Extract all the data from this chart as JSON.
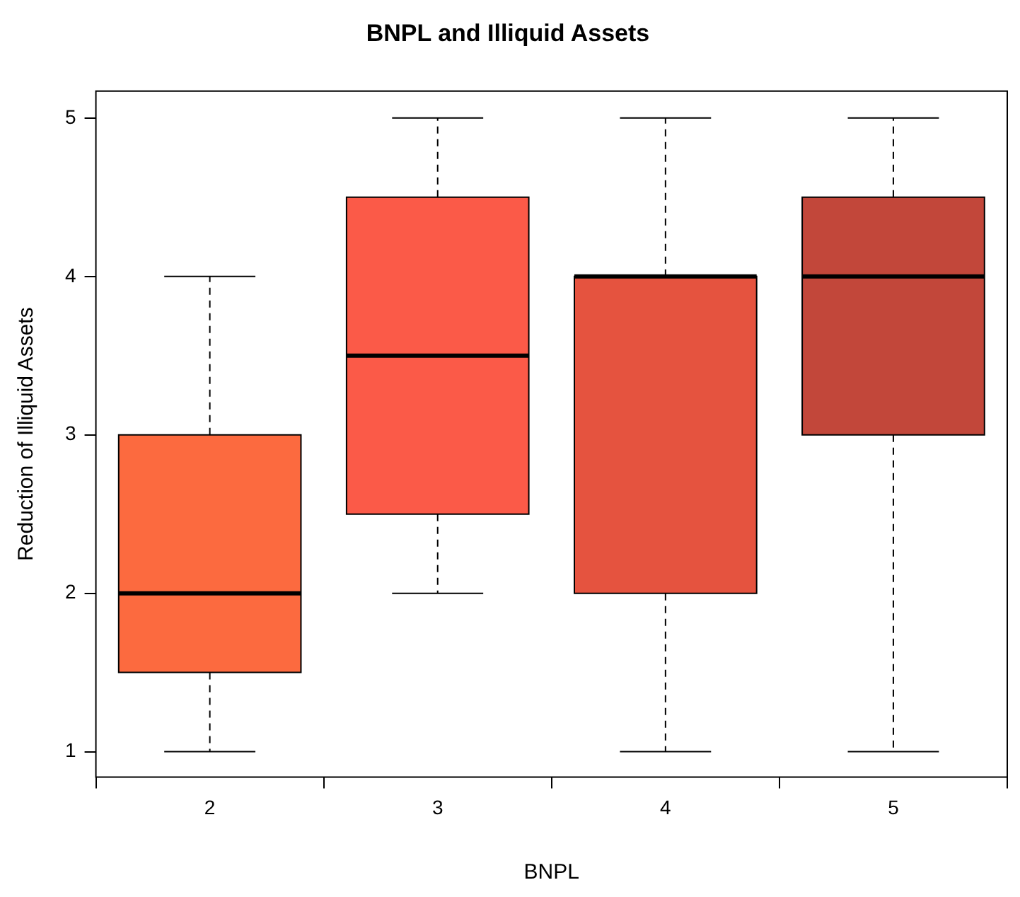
{
  "chart_data": {
    "type": "box",
    "title": "BNPL and Illiquid Assets",
    "xlabel": "BNPL",
    "ylabel": "Reduction of Illiquid Assets",
    "categories": [
      "2",
      "3",
      "4",
      "5"
    ],
    "colors": [
      "#fc6a3f",
      "#fb5a48",
      "#e5533f",
      "#c2473a"
    ],
    "boxes": [
      {
        "low": 1,
        "q1": 1.5,
        "median": 2,
        "q3": 3,
        "high": 4
      },
      {
        "low": 2,
        "q1": 2.5,
        "median": 3.5,
        "q3": 4.5,
        "high": 5
      },
      {
        "low": 1,
        "q1": 2,
        "median": 4,
        "q3": 4,
        "high": 5
      },
      {
        "low": 1,
        "q1": 3,
        "median": 4,
        "q3": 4.5,
        "high": 5
      }
    ],
    "ylim": [
      0.84,
      5.17
    ],
    "yticks": [
      1,
      2,
      3,
      4,
      5
    ],
    "grid": false,
    "legend": false
  }
}
